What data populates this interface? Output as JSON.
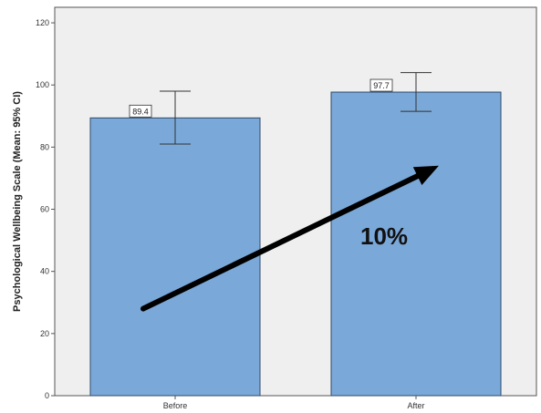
{
  "chart_data": {
    "type": "bar",
    "ylabel": "Psychological Wellbeing Scale (Mean: 95% CI)",
    "categories": [
      "Before",
      "After"
    ],
    "values": [
      89.4,
      97.7
    ],
    "data_labels": [
      "89.4",
      "97.7"
    ],
    "error_bars": [
      {
        "low": 81,
        "high": 98
      },
      {
        "low": 91.5,
        "high": 104
      }
    ],
    "ylim": [
      0,
      125
    ],
    "yticks": [
      0,
      20,
      40,
      60,
      80,
      100,
      120
    ],
    "ytick_labels": [
      "0",
      "20",
      "40",
      "60",
      "80",
      "100",
      "120"
    ],
    "grid": false,
    "annotation": {
      "text": "10%",
      "kind": "arrow",
      "from_value": 28,
      "to_value": 74
    },
    "colors": {
      "bar": "#7aa8d8",
      "bar_edge": "#2e4a6b",
      "plot_bg": "#efefef",
      "frame": "#555555",
      "arrow": "#000000"
    }
  }
}
